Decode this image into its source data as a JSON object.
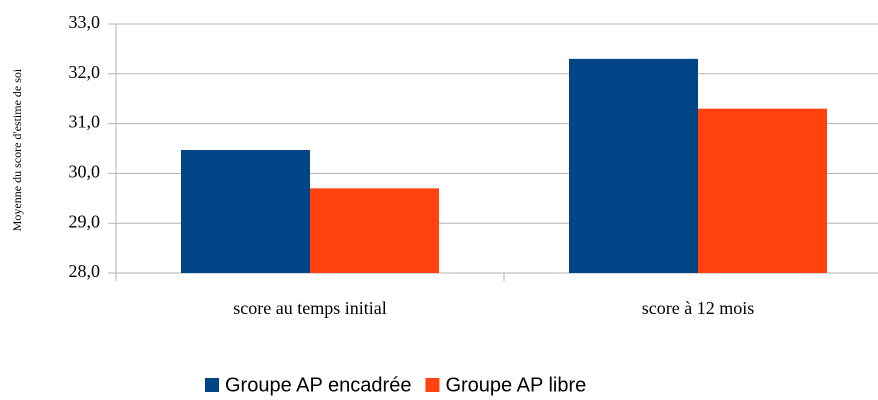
{
  "chart_data": {
    "type": "bar",
    "y_label": "Moyenne du score d'estime de soi",
    "categories": [
      "score au temps initial",
      "score à 12 mois"
    ],
    "series": [
      {
        "name": "Groupe AP encadrée",
        "color": "#004586",
        "values": [
          30.47,
          32.3
        ]
      },
      {
        "name": "Groupe AP libre",
        "color": "#ff420e",
        "values": [
          29.7,
          31.3
        ]
      }
    ],
    "ylim": [
      28,
      33
    ],
    "yticks": [
      {
        "value": 28,
        "label": "28,0"
      },
      {
        "value": 29,
        "label": "29,0"
      },
      {
        "value": 30,
        "label": "30,0"
      },
      {
        "value": 31,
        "label": "31,0"
      },
      {
        "value": 32,
        "label": "32,0"
      },
      {
        "value": 33,
        "label": "33,0"
      }
    ],
    "grid": true,
    "legend": "bottom"
  }
}
